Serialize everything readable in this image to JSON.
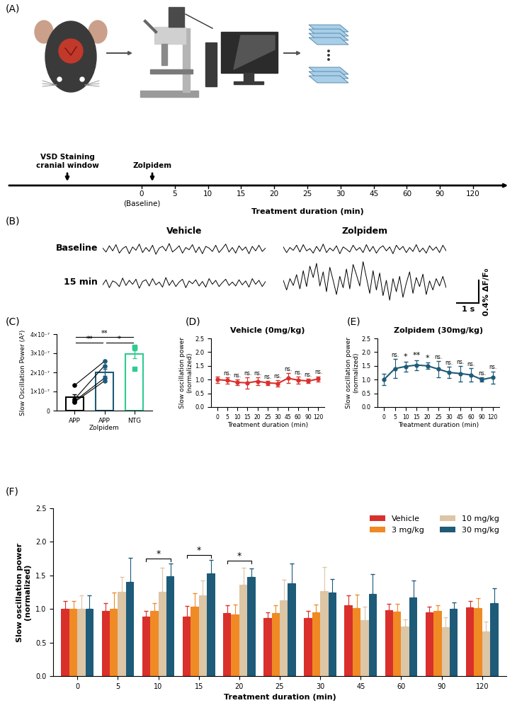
{
  "chart_data": [
    {
      "panel_label": "(A)",
      "type": "timeline",
      "categories": [
        "0",
        "5",
        "10",
        "15",
        "20",
        "25",
        "30",
        "45",
        "60",
        "90",
        "120"
      ],
      "events": [
        {
          "text": "VSD Staining\ncranial window"
        },
        {
          "text": "Zolpidem"
        }
      ],
      "baseline_label": "(Baseline)",
      "xlabel": "Treatment duration (min)"
    },
    {
      "panel_label": "(B)",
      "type": "line",
      "columns": [
        "Vehicle",
        "Zolpidem"
      ],
      "rows": [
        "Baseline",
        "15 min"
      ],
      "tick_labels": false,
      "color": "#000000",
      "xlim": [
        0,
        7.35
      ],
      "ylim": [
        -0.35,
        0.4
      ],
      "x": [
        0,
        0.15,
        0.3,
        0.45,
        0.6,
        0.75,
        0.9,
        1.05,
        1.2,
        1.35,
        1.5,
        1.65,
        1.8,
        1.95,
        2.1,
        2.25,
        2.4,
        2.55,
        2.7,
        2.85,
        3.0,
        3.15,
        3.3,
        3.45,
        3.6,
        3.75,
        3.9,
        4.05,
        4.2,
        4.35,
        4.5,
        4.65,
        4.8,
        4.95,
        5.1,
        5.25,
        5.4,
        5.55,
        5.7,
        5.85,
        6.0,
        6.15,
        6.3,
        6.45,
        6.6,
        6.75,
        6.9,
        7.05,
        7.2,
        7.35
      ],
      "series": [
        {
          "column": "Vehicle",
          "row": "Baseline",
          "values": [
            0.02,
            -0.05,
            0.06,
            -0.03,
            0.08,
            -0.07,
            0.01,
            0.05,
            -0.08,
            0.04,
            -0.02,
            0.09,
            -0.06,
            0.03,
            -0.04,
            0.07,
            -0.09,
            0.02,
            0.05,
            -0.03,
            0.1,
            -0.05,
            0.0,
            0.06,
            -0.07,
            0.03,
            -0.01,
            0.08,
            -0.06,
            0.04,
            -0.08,
            0.05,
            0.02,
            -0.04,
            0.07,
            -0.06,
            0.01,
            0.09,
            -0.05,
            0.03,
            -0.07,
            0.06,
            -0.02,
            0.04,
            -0.08,
            0.05,
            -0.03,
            0.07,
            -0.04,
            0.02
          ]
        },
        {
          "column": "Vehicle",
          "row": "15 min",
          "values": [
            -0.03,
            0.06,
            -0.08,
            0.04,
            0.01,
            -0.06,
            0.09,
            -0.04,
            0.05,
            -0.02,
            0.07,
            -0.09,
            0.03,
            0.06,
            -0.05,
            0.08,
            -0.03,
            0.02,
            -0.07,
            0.1,
            -0.04,
            0.05,
            -0.06,
            0.02,
            0.07,
            -0.08,
            0.04,
            -0.01,
            0.06,
            -0.05,
            0.03,
            -0.07,
            0.08,
            -0.02,
            0.05,
            -0.06,
            0.01,
            0.07,
            -0.04,
            0.02,
            -0.05,
            0.06,
            -0.03,
            0.04,
            -0.07,
            0.08,
            -0.02,
            0.05,
            -0.06,
            0.03
          ]
        },
        {
          "column": "Zolpidem",
          "row": "Baseline",
          "values": [
            0.04,
            -0.06,
            0.03,
            -0.02,
            0.07,
            -0.05,
            0.08,
            -0.03,
            0.01,
            -0.07,
            0.05,
            -0.04,
            0.09,
            -0.06,
            0.02,
            -0.03,
            0.06,
            -0.08,
            0.04,
            0.0,
            -0.05,
            0.07,
            -0.02,
            0.03,
            -0.06,
            0.08,
            -0.04,
            0.05,
            -0.07,
            0.02,
            0.06,
            -0.03,
            0.04,
            -0.08,
            0.07,
            -0.01,
            0.05,
            -0.06,
            0.03,
            -0.04,
            0.08,
            -0.05,
            0.02,
            -0.07,
            0.06,
            -0.02,
            0.04,
            -0.06,
            0.07,
            -0.03
          ]
        },
        {
          "column": "Zolpidem",
          "row": "15 min",
          "values": [
            0.05,
            -0.12,
            0.08,
            -0.04,
            0.15,
            -0.1,
            0.22,
            -0.06,
            0.3,
            0.1,
            0.35,
            -0.05,
            0.2,
            -0.15,
            0.28,
            0.05,
            -0.2,
            0.12,
            -0.08,
            0.25,
            -0.1,
            0.33,
            0.15,
            -0.05,
            0.38,
            0.1,
            -0.18,
            0.22,
            -0.12,
            0.18,
            -0.22,
            0.05,
            -0.3,
            0.08,
            -0.15,
            0.12,
            -0.25,
            0.0,
            0.2,
            -0.18,
            0.1,
            -0.06,
            0.16,
            -0.2,
            0.04,
            -0.12,
            0.08,
            -0.05,
            0.12,
            -0.08
          ]
        }
      ],
      "scale_bar": {
        "x": 1,
        "x_label": "1 s",
        "y": 0.4,
        "y_label": "0.4% ΔF/F₀"
      }
    },
    {
      "panel_label": "(C)",
      "type": "bar",
      "categories": [
        "APP",
        "APP\nZolpidem",
        "NTG"
      ],
      "values": [
        7e-08,
        2e-07,
        2.95e-07
      ],
      "errors": [
        1.5e-08,
        1.8e-08,
        2e-08
      ],
      "colors": [
        "#000000",
        "#1d5b79",
        "#2ecc8f"
      ],
      "points": [
        [
          1.32e-07,
          6e-08,
          5e-08,
          4.5e-08
        ],
        [
          2.58e-07,
          2.35e-07,
          1.7e-07,
          1.55e-07
        ],
        [
          3.35e-07,
          3.3e-07,
          2.2e-07
        ]
      ],
      "paired": [
        "APP",
        "APP\nZolpidem"
      ],
      "ylabel": "Slow Oscillation Power (A²)",
      "ylim": [
        0,
        4e-07
      ],
      "yticks": [
        0,
        {
          "value": 1e-07,
          "label": "1×10⁻⁷"
        },
        {
          "value": 2e-07,
          "label": "2×10⁻⁷"
        },
        {
          "value": 3e-07,
          "label": "3×10⁻⁷"
        },
        {
          "value": 4e-07,
          "label": "4×10⁻⁷"
        }
      ],
      "significance": [
        {
          "from": "APP",
          "to": "NTG",
          "text": "**",
          "y": 3.85e-07
        },
        {
          "from": "APP",
          "to": "APP\nZolpidem",
          "text": "**",
          "y": 3.55e-07
        },
        {
          "from": "APP\nZolpidem",
          "to": "NTG",
          "text": "*",
          "y": 3.55e-07
        }
      ]
    },
    {
      "panel_label": "(D)",
      "type": "line",
      "title": "Vehicle (0mg/kg)",
      "categories": [
        "0",
        "5",
        "10",
        "15",
        "20",
        "25",
        "30",
        "45",
        "60",
        "90",
        "120"
      ],
      "values": [
        1.0,
        0.97,
        0.9,
        0.88,
        0.94,
        0.88,
        0.86,
        1.05,
        0.98,
        0.95,
        1.02
      ],
      "errors": [
        0.12,
        0.12,
        0.1,
        0.2,
        0.14,
        0.08,
        0.12,
        0.18,
        0.12,
        0.08,
        0.1
      ],
      "significance": [
        null,
        "ns.",
        "ns.",
        "ns.",
        "ns.",
        "ns.",
        "ns.",
        "ns.",
        "ns.",
        "ns.",
        "ns."
      ],
      "color": "#d9302c",
      "marker": "o",
      "xlabel": "Treatment duration (min)",
      "ylabel": "Slow oscillation power\n(normalized)",
      "ylim": [
        0.0,
        2.5
      ],
      "yticks": [
        0.0,
        0.5,
        1.0,
        1.5,
        2.0,
        2.5
      ]
    },
    {
      "panel_label": "(E)",
      "type": "line",
      "title": "Zolpidem (30mg/kg)",
      "categories": [
        "0",
        "5",
        "10",
        "15",
        "20",
        "25",
        "30",
        "45",
        "60",
        "90",
        "120"
      ],
      "values": [
        1.0,
        1.4,
        1.48,
        1.53,
        1.5,
        1.38,
        1.26,
        1.22,
        1.17,
        1.0,
        1.08
      ],
      "errors": [
        0.2,
        0.35,
        0.18,
        0.18,
        0.12,
        0.3,
        0.2,
        0.28,
        0.25,
        0.07,
        0.22
      ],
      "significance": [
        null,
        "ns.",
        "*",
        "**",
        "*",
        "ns.",
        "ns.",
        "ns.",
        "ns.",
        "ns.",
        "ns."
      ],
      "color": "#1d5b79",
      "marker": "o",
      "xlabel": "Treatment duration (min)",
      "ylabel": "Slow oscillation power\n(normalized)",
      "ylim": [
        0.0,
        2.5
      ],
      "yticks": [
        0.0,
        0.5,
        1.0,
        1.5,
        2.0,
        2.5
      ]
    },
    {
      "panel_label": "(F)",
      "type": "bar",
      "categories": [
        "0",
        "5",
        "10",
        "15",
        "20",
        "25",
        "30",
        "45",
        "60",
        "90",
        "120"
      ],
      "series": [
        {
          "name": "Vehicle",
          "color": "#d9302c",
          "values": [
            1.0,
            0.97,
            0.89,
            0.89,
            0.94,
            0.87,
            0.87,
            1.05,
            0.98,
            0.95,
            1.02
          ],
          "errors": [
            0.12,
            0.12,
            0.08,
            0.15,
            0.12,
            0.08,
            0.1,
            0.15,
            0.1,
            0.08,
            0.1
          ]
        },
        {
          "name": "3 mg/kg",
          "color": "#f08a24",
          "values": [
            1.0,
            1.0,
            0.97,
            1.03,
            0.92,
            0.94,
            0.95,
            1.01,
            0.96,
            0.97,
            1.01
          ],
          "errors": [
            0.12,
            0.25,
            0.12,
            0.2,
            0.15,
            0.12,
            0.12,
            0.2,
            0.12,
            0.08,
            0.15
          ]
        },
        {
          "name": "10 mg/kg",
          "color": "#dcc6a6",
          "values": [
            1.0,
            1.26,
            1.26,
            1.2,
            1.36,
            1.13,
            1.27,
            0.83,
            0.74,
            0.73,
            0.66
          ],
          "errors": [
            0.2,
            0.22,
            0.35,
            0.22,
            0.25,
            0.3,
            0.35,
            0.2,
            0.1,
            0.15,
            0.15
          ]
        },
        {
          "name": "30 mg/kg",
          "color": "#1d5b79",
          "values": [
            1.0,
            1.4,
            1.49,
            1.53,
            1.48,
            1.38,
            1.25,
            1.22,
            1.17,
            1.0,
            1.09
          ],
          "errors": [
            0.2,
            0.36,
            0.19,
            0.2,
            0.12,
            0.3,
            0.2,
            0.3,
            0.25,
            0.1,
            0.22
          ]
        }
      ],
      "legend": "upper right",
      "significance": [
        {
          "category": "10",
          "from": "Vehicle",
          "to": "30 mg/kg",
          "text": "*",
          "y": 1.75
        },
        {
          "category": "15",
          "from": "Vehicle",
          "to": "30 mg/kg",
          "text": "*",
          "y": 1.8
        },
        {
          "category": "20",
          "from": "Vehicle",
          "to": "30 mg/kg",
          "text": "*",
          "y": 1.72
        }
      ],
      "xlabel": "Treatment duration (min)",
      "ylabel": "Slow oscillation power\n(normalized)",
      "ylim": [
        0.0,
        2.5
      ],
      "yticks": [
        0.0,
        0.5,
        1.0,
        1.5,
        2.0,
        2.5
      ]
    }
  ]
}
